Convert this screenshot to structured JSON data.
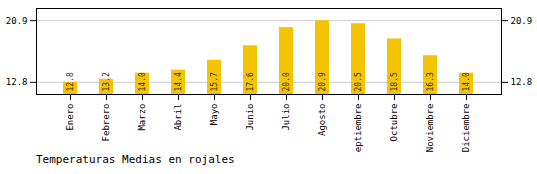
{
  "chart_data": {
    "type": "bar",
    "title": "Temperaturas Medias en rojales",
    "categories": [
      "Enero",
      "Febrero",
      "Marzo",
      "Abril",
      "Mayo",
      "Junio",
      "Julio",
      "Agosto",
      "Septiembre",
      "Octubre",
      "Noviembre",
      "Diciembre"
    ],
    "values": [
      12.8,
      13.2,
      14.0,
      14.4,
      15.7,
      17.6,
      20.0,
      20.9,
      20.5,
      18.5,
      16.3,
      14.0
    ],
    "value_labels": [
      "12.8",
      "13.2",
      "14.0",
      "14.4",
      "15.7",
      "17.6",
      "20.0",
      "20.9",
      "20.5",
      "18.5",
      "16.3",
      "14.0"
    ],
    "data_labels": true,
    "color": "#F5C400",
    "ylim": [
      11.2,
      22.5
    ],
    "yticks": [
      12.8,
      20.9
    ],
    "grid": true
  }
}
